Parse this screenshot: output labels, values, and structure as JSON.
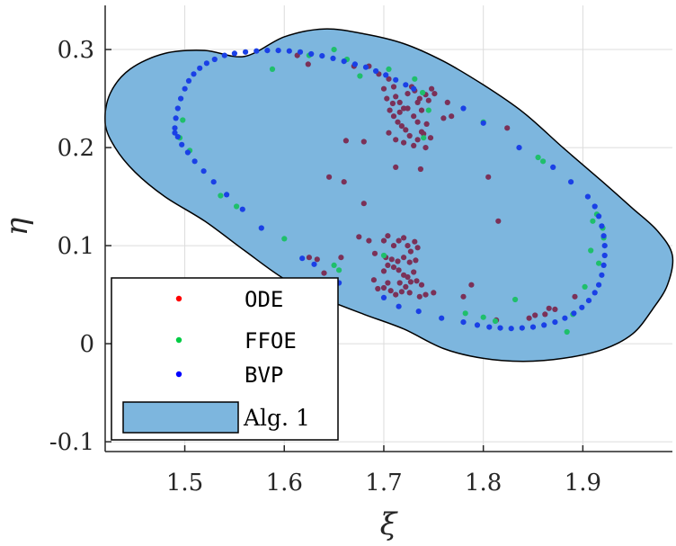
{
  "chart_data": {
    "type": "scatter",
    "title": "",
    "xlabel": "ξ",
    "ylabel": "η",
    "xlim": [
      1.42,
      1.99
    ],
    "ylim": [
      -0.11,
      0.345
    ],
    "xticks": [
      1.5,
      1.6,
      1.7,
      1.8,
      1.9
    ],
    "xtick_labels": [
      "1.5",
      "1.6",
      "1.7",
      "1.8",
      "1.9"
    ],
    "yticks": [
      -0.1,
      0,
      0.1,
      0.2,
      0.3
    ],
    "ytick_labels": [
      "-0.1",
      "0",
      "0.1",
      "0.2",
      "0.3"
    ],
    "grid": true,
    "legend_position": "bottom-left",
    "region": {
      "name": "Alg. 1",
      "color": "#7db6de",
      "edge_color": "#000000",
      "outline": [
        [
          1.56,
          0.293
        ],
        [
          1.6,
          0.313
        ],
        [
          1.64,
          0.321
        ],
        [
          1.68,
          0.316
        ],
        [
          1.72,
          0.306
        ],
        [
          1.76,
          0.288
        ],
        [
          1.8,
          0.264
        ],
        [
          1.84,
          0.236
        ],
        [
          1.88,
          0.2
        ],
        [
          1.92,
          0.165
        ],
        [
          1.95,
          0.138
        ],
        [
          1.975,
          0.115
        ],
        [
          1.99,
          0.09
        ],
        [
          1.985,
          0.06
        ],
        [
          1.97,
          0.035
        ],
        [
          1.95,
          0.01
        ],
        [
          1.92,
          -0.006
        ],
        [
          1.88,
          -0.015
        ],
        [
          1.84,
          -0.018
        ],
        [
          1.8,
          -0.015
        ],
        [
          1.76,
          -0.005
        ],
        [
          1.72,
          0.015
        ],
        [
          1.68,
          0.03
        ],
        [
          1.64,
          0.046
        ],
        [
          1.6,
          0.066
        ],
        [
          1.56,
          0.095
        ],
        [
          1.52,
          0.125
        ],
        [
          1.48,
          0.15
        ],
        [
          1.45,
          0.175
        ],
        [
          1.43,
          0.2
        ],
        [
          1.42,
          0.225
        ],
        [
          1.425,
          0.255
        ],
        [
          1.445,
          0.28
        ],
        [
          1.48,
          0.296
        ],
        [
          1.52,
          0.299
        ]
      ]
    },
    "series": [
      {
        "name": "ODE",
        "color": "#ff0000",
        "draw_color": "#7b3158",
        "points": [
          [
            1.613,
            0.294
          ],
          [
            1.624,
            0.285
          ],
          [
            1.67,
            0.283
          ],
          [
            1.685,
            0.283
          ],
          [
            1.695,
            0.275
          ],
          [
            1.7,
            0.26
          ],
          [
            1.705,
            0.27
          ],
          [
            1.71,
            0.262
          ],
          [
            1.712,
            0.252
          ],
          [
            1.716,
            0.246
          ],
          [
            1.72,
            0.24
          ],
          [
            1.724,
            0.255
          ],
          [
            1.728,
            0.262
          ],
          [
            1.731,
            0.258
          ],
          [
            1.734,
            0.246
          ],
          [
            1.738,
            0.238
          ],
          [
            1.742,
            0.254
          ],
          [
            1.745,
            0.248
          ],
          [
            1.748,
            0.26
          ],
          [
            1.751,
            0.255
          ],
          [
            1.706,
            0.238
          ],
          [
            1.71,
            0.232
          ],
          [
            1.714,
            0.226
          ],
          [
            1.718,
            0.222
          ],
          [
            1.722,
            0.218
          ],
          [
            1.726,
            0.212
          ],
          [
            1.73,
            0.232
          ],
          [
            1.734,
            0.226
          ],
          [
            1.738,
            0.216
          ],
          [
            1.705,
            0.215
          ],
          [
            1.712,
            0.208
          ],
          [
            1.72,
            0.205
          ],
          [
            1.73,
            0.202
          ],
          [
            1.734,
            0.208
          ],
          [
            1.74,
            0.214
          ],
          [
            1.716,
            0.236
          ],
          [
            1.724,
            0.24
          ],
          [
            1.709,
            0.245
          ],
          [
            1.703,
            0.25
          ],
          [
            1.736,
            0.25
          ],
          [
            1.743,
            0.224
          ],
          [
            1.747,
            0.21
          ],
          [
            1.76,
            0.23
          ],
          [
            1.764,
            0.246
          ],
          [
            1.768,
            0.232
          ],
          [
            1.742,
            0.2
          ],
          [
            1.68,
            0.206
          ],
          [
            1.712,
            0.18
          ],
          [
            1.737,
            0.178
          ],
          [
            1.66,
            0.165
          ],
          [
            1.645,
            0.17
          ],
          [
            1.662,
            0.207
          ],
          [
            1.68,
            0.143
          ],
          [
            1.675,
            0.109
          ],
          [
            1.685,
            0.105
          ],
          [
            1.7,
            0.105
          ],
          [
            1.704,
            0.11
          ],
          [
            1.71,
            0.1
          ],
          [
            1.715,
            0.105
          ],
          [
            1.72,
            0.108
          ],
          [
            1.724,
            0.1
          ],
          [
            1.727,
            0.094
          ],
          [
            1.731,
            0.104
          ],
          [
            1.734,
            0.098
          ],
          [
            1.702,
            0.088
          ],
          [
            1.708,
            0.086
          ],
          [
            1.714,
            0.084
          ],
          [
            1.72,
            0.088
          ],
          [
            1.726,
            0.083
          ],
          [
            1.732,
            0.085
          ],
          [
            1.715,
            0.075
          ],
          [
            1.72,
            0.07
          ],
          [
            1.724,
            0.068
          ],
          [
            1.73,
            0.073
          ],
          [
            1.7,
            0.074
          ],
          [
            1.704,
            0.08
          ],
          [
            1.71,
            0.078
          ],
          [
            1.716,
            0.062
          ],
          [
            1.722,
            0.058
          ],
          [
            1.727,
            0.063
          ],
          [
            1.733,
            0.064
          ],
          [
            1.738,
            0.06
          ],
          [
            1.704,
            0.062
          ],
          [
            1.707,
            0.054
          ],
          [
            1.712,
            0.05
          ],
          [
            1.718,
            0.053
          ],
          [
            1.726,
            0.052
          ],
          [
            1.736,
            0.048
          ],
          [
            1.742,
            0.05
          ],
          [
            1.75,
            0.052
          ],
          [
            1.7,
            0.057
          ],
          [
            1.694,
            0.056
          ],
          [
            1.691,
            0.092
          ],
          [
            1.69,
            0.065
          ],
          [
            1.64,
            0.072
          ],
          [
            1.625,
            0.088
          ],
          [
            1.633,
            0.086
          ],
          [
            1.657,
            0.088
          ],
          [
            1.78,
            0.048
          ],
          [
            1.788,
            0.06
          ],
          [
            1.805,
            0.17
          ],
          [
            1.815,
            0.125
          ],
          [
            1.824,
            0.22
          ],
          [
            1.813,
            0.024
          ],
          [
            1.862,
            0.03
          ],
          [
            1.866,
            0.036
          ],
          [
            1.846,
            0.026
          ],
          [
            1.872,
            0.035
          ],
          [
            1.852,
            0.029
          ],
          [
            1.892,
            0.048
          ]
        ]
      },
      {
        "name": "FFOE",
        "color": "#00cc44",
        "draw_color": "#1fbf6b",
        "points": [
          [
            1.495,
            0.21
          ],
          [
            1.498,
            0.228
          ],
          [
            1.505,
            0.197
          ],
          [
            1.536,
            0.151
          ],
          [
            1.552,
            0.14
          ],
          [
            1.588,
            0.28
          ],
          [
            1.6,
            0.107
          ],
          [
            1.625,
            0.294
          ],
          [
            1.65,
            0.08
          ],
          [
            1.655,
            0.075
          ],
          [
            1.663,
            0.29
          ],
          [
            1.676,
            0.273
          ],
          [
            1.7,
            0.09
          ],
          [
            1.739,
            0.256
          ],
          [
            1.745,
            0.238
          ],
          [
            1.782,
            0.031
          ],
          [
            1.8,
            0.027
          ],
          [
            1.812,
            0.023
          ],
          [
            1.832,
            0.045
          ],
          [
            1.855,
            0.19
          ],
          [
            1.86,
            0.186
          ],
          [
            1.884,
            0.012
          ],
          [
            1.89,
            0.03
          ],
          [
            1.902,
            0.058
          ],
          [
            1.908,
            0.095
          ],
          [
            1.91,
            0.125
          ],
          [
            1.914,
            0.132
          ],
          [
            1.916,
            0.082
          ],
          [
            1.92,
            0.118
          ],
          [
            1.921,
            0.108
          ],
          [
            1.65,
            0.3
          ],
          [
            1.705,
            0.28
          ],
          [
            1.731,
            0.27
          ],
          [
            1.74,
            0.21
          ],
          [
            1.8,
            0.226
          ]
        ]
      },
      {
        "name": "BVP",
        "color": "#0000ff",
        "draw_color": "#1a40e6",
        "points": [
          [
            1.49,
            0.22
          ],
          [
            1.491,
            0.23
          ],
          [
            1.493,
            0.24
          ],
          [
            1.496,
            0.25
          ],
          [
            1.5,
            0.26
          ],
          [
            1.504,
            0.268
          ],
          [
            1.509,
            0.275
          ],
          [
            1.515,
            0.281
          ],
          [
            1.522,
            0.286
          ],
          [
            1.53,
            0.29
          ],
          [
            1.54,
            0.294
          ],
          [
            1.55,
            0.296
          ],
          [
            1.561,
            0.2975
          ],
          [
            1.572,
            0.2985
          ],
          [
            1.583,
            0.299
          ],
          [
            1.594,
            0.299
          ],
          [
            1.605,
            0.2985
          ],
          [
            1.616,
            0.2975
          ],
          [
            1.627,
            0.2955
          ],
          [
            1.638,
            0.2935
          ],
          [
            1.649,
            0.291
          ],
          [
            1.66,
            0.288
          ],
          [
            1.671,
            0.285
          ],
          [
            1.682,
            0.282
          ],
          [
            1.692,
            0.278
          ],
          [
            1.702,
            0.274
          ],
          [
            1.712,
            0.269
          ],
          [
            1.722,
            0.264
          ],
          [
            1.73,
            0.26
          ],
          [
            1.78,
            0.24
          ],
          [
            1.8,
            0.225
          ],
          [
            1.836,
            0.2
          ],
          [
            1.87,
            0.18
          ],
          [
            1.888,
            0.165
          ],
          [
            1.905,
            0.15
          ],
          [
            1.912,
            0.14
          ],
          [
            1.916,
            0.13
          ],
          [
            1.919,
            0.12
          ],
          [
            1.921,
            0.11
          ],
          [
            1.922,
            0.1
          ],
          [
            1.922,
            0.09
          ],
          [
            1.921,
            0.08
          ],
          [
            1.919,
            0.07
          ],
          [
            1.916,
            0.06
          ],
          [
            1.912,
            0.052
          ],
          [
            1.906,
            0.044
          ],
          [
            1.899,
            0.037
          ],
          [
            1.891,
            0.031
          ],
          [
            1.882,
            0.026
          ],
          [
            1.872,
            0.022
          ],
          [
            1.861,
            0.019
          ],
          [
            1.85,
            0.017
          ],
          [
            1.839,
            0.016
          ],
          [
            1.828,
            0.0155
          ],
          [
            1.817,
            0.016
          ],
          [
            1.806,
            0.017
          ],
          [
            1.794,
            0.019
          ],
          [
            1.78,
            0.022
          ],
          [
            1.758,
            0.026
          ],
          [
            1.735,
            0.033
          ],
          [
            1.715,
            0.038
          ],
          [
            1.7,
            0.047
          ],
          [
            1.655,
            0.062
          ],
          [
            1.63,
            0.081
          ],
          [
            1.618,
            0.087
          ],
          [
            1.577,
            0.118
          ],
          [
            1.558,
            0.137
          ],
          [
            1.542,
            0.152
          ],
          [
            1.529,
            0.165
          ],
          [
            1.519,
            0.176
          ],
          [
            1.51,
            0.186
          ],
          [
            1.503,
            0.195
          ],
          [
            1.497,
            0.203
          ],
          [
            1.493,
            0.211
          ],
          [
            1.49,
            0.215
          ]
        ]
      }
    ]
  }
}
